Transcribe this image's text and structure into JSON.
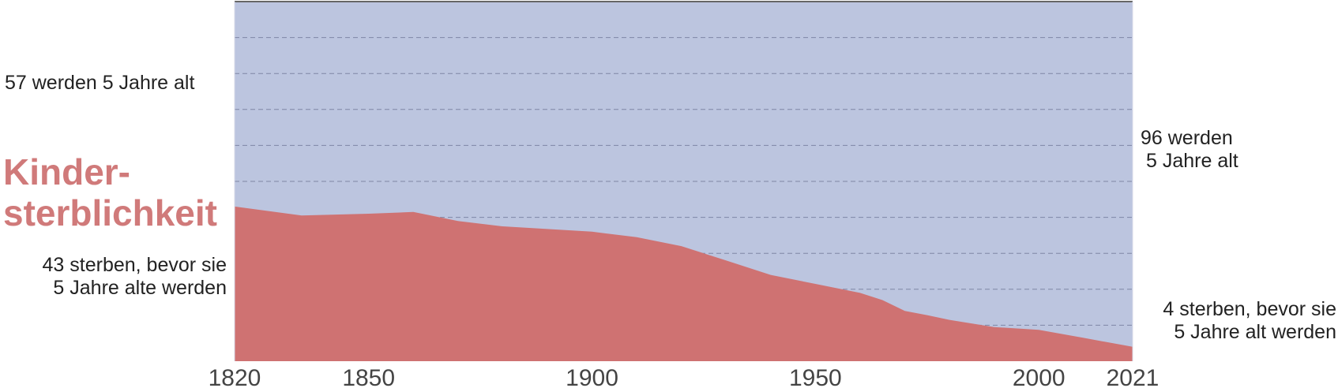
{
  "chart_data": {
    "type": "area",
    "title": "Kinder-\nsterblichkeit",
    "xlabel": "",
    "ylabel": "",
    "x_ticks": [
      "1820",
      "1850",
      "1900",
      "1950",
      "2000",
      "2021"
    ],
    "xlim": [
      1820,
      2021
    ],
    "ylim": [
      0,
      100
    ],
    "grid": true,
    "series": [
      {
        "name": "sterben, bevor sie 5 Jahre alt werden",
        "color": "#cf7272",
        "points": [
          [
            1820,
            43.0
          ],
          [
            1835,
            40.5
          ],
          [
            1850,
            41.0
          ],
          [
            1860,
            41.5
          ],
          [
            1870,
            39.0
          ],
          [
            1880,
            37.5
          ],
          [
            1900,
            36.0
          ],
          [
            1910,
            34.5
          ],
          [
            1920,
            32.0
          ],
          [
            1930,
            28.0
          ],
          [
            1940,
            24.0
          ],
          [
            1950,
            21.5
          ],
          [
            1960,
            19.0
          ],
          [
            1965,
            17.0
          ],
          [
            1970,
            14.0
          ],
          [
            1975,
            12.8
          ],
          [
            1980,
            11.5
          ],
          [
            1990,
            9.5
          ],
          [
            2000,
            8.7
          ],
          [
            2010,
            6.5
          ],
          [
            2021,
            4.0
          ]
        ]
      },
      {
        "name": "werden 5 Jahre alt",
        "color": "#bcc5df",
        "fill_to": 100
      }
    ],
    "annotations": {
      "left_top": "57 werden 5 Jahre alt",
      "left_bottom_line1": "43 sterben, bevor sie",
      "left_bottom_line2": "5 Jahre alte werden",
      "right_top_line1": "96 werden",
      "right_top_line2": "5 Jahre alt",
      "right_bottom_line1": "4 sterben, bevor sie",
      "right_bottom_line2": "5 Jahre alt werden"
    },
    "title_color": "#d07a7a",
    "grid_color": "#7f86a6"
  }
}
